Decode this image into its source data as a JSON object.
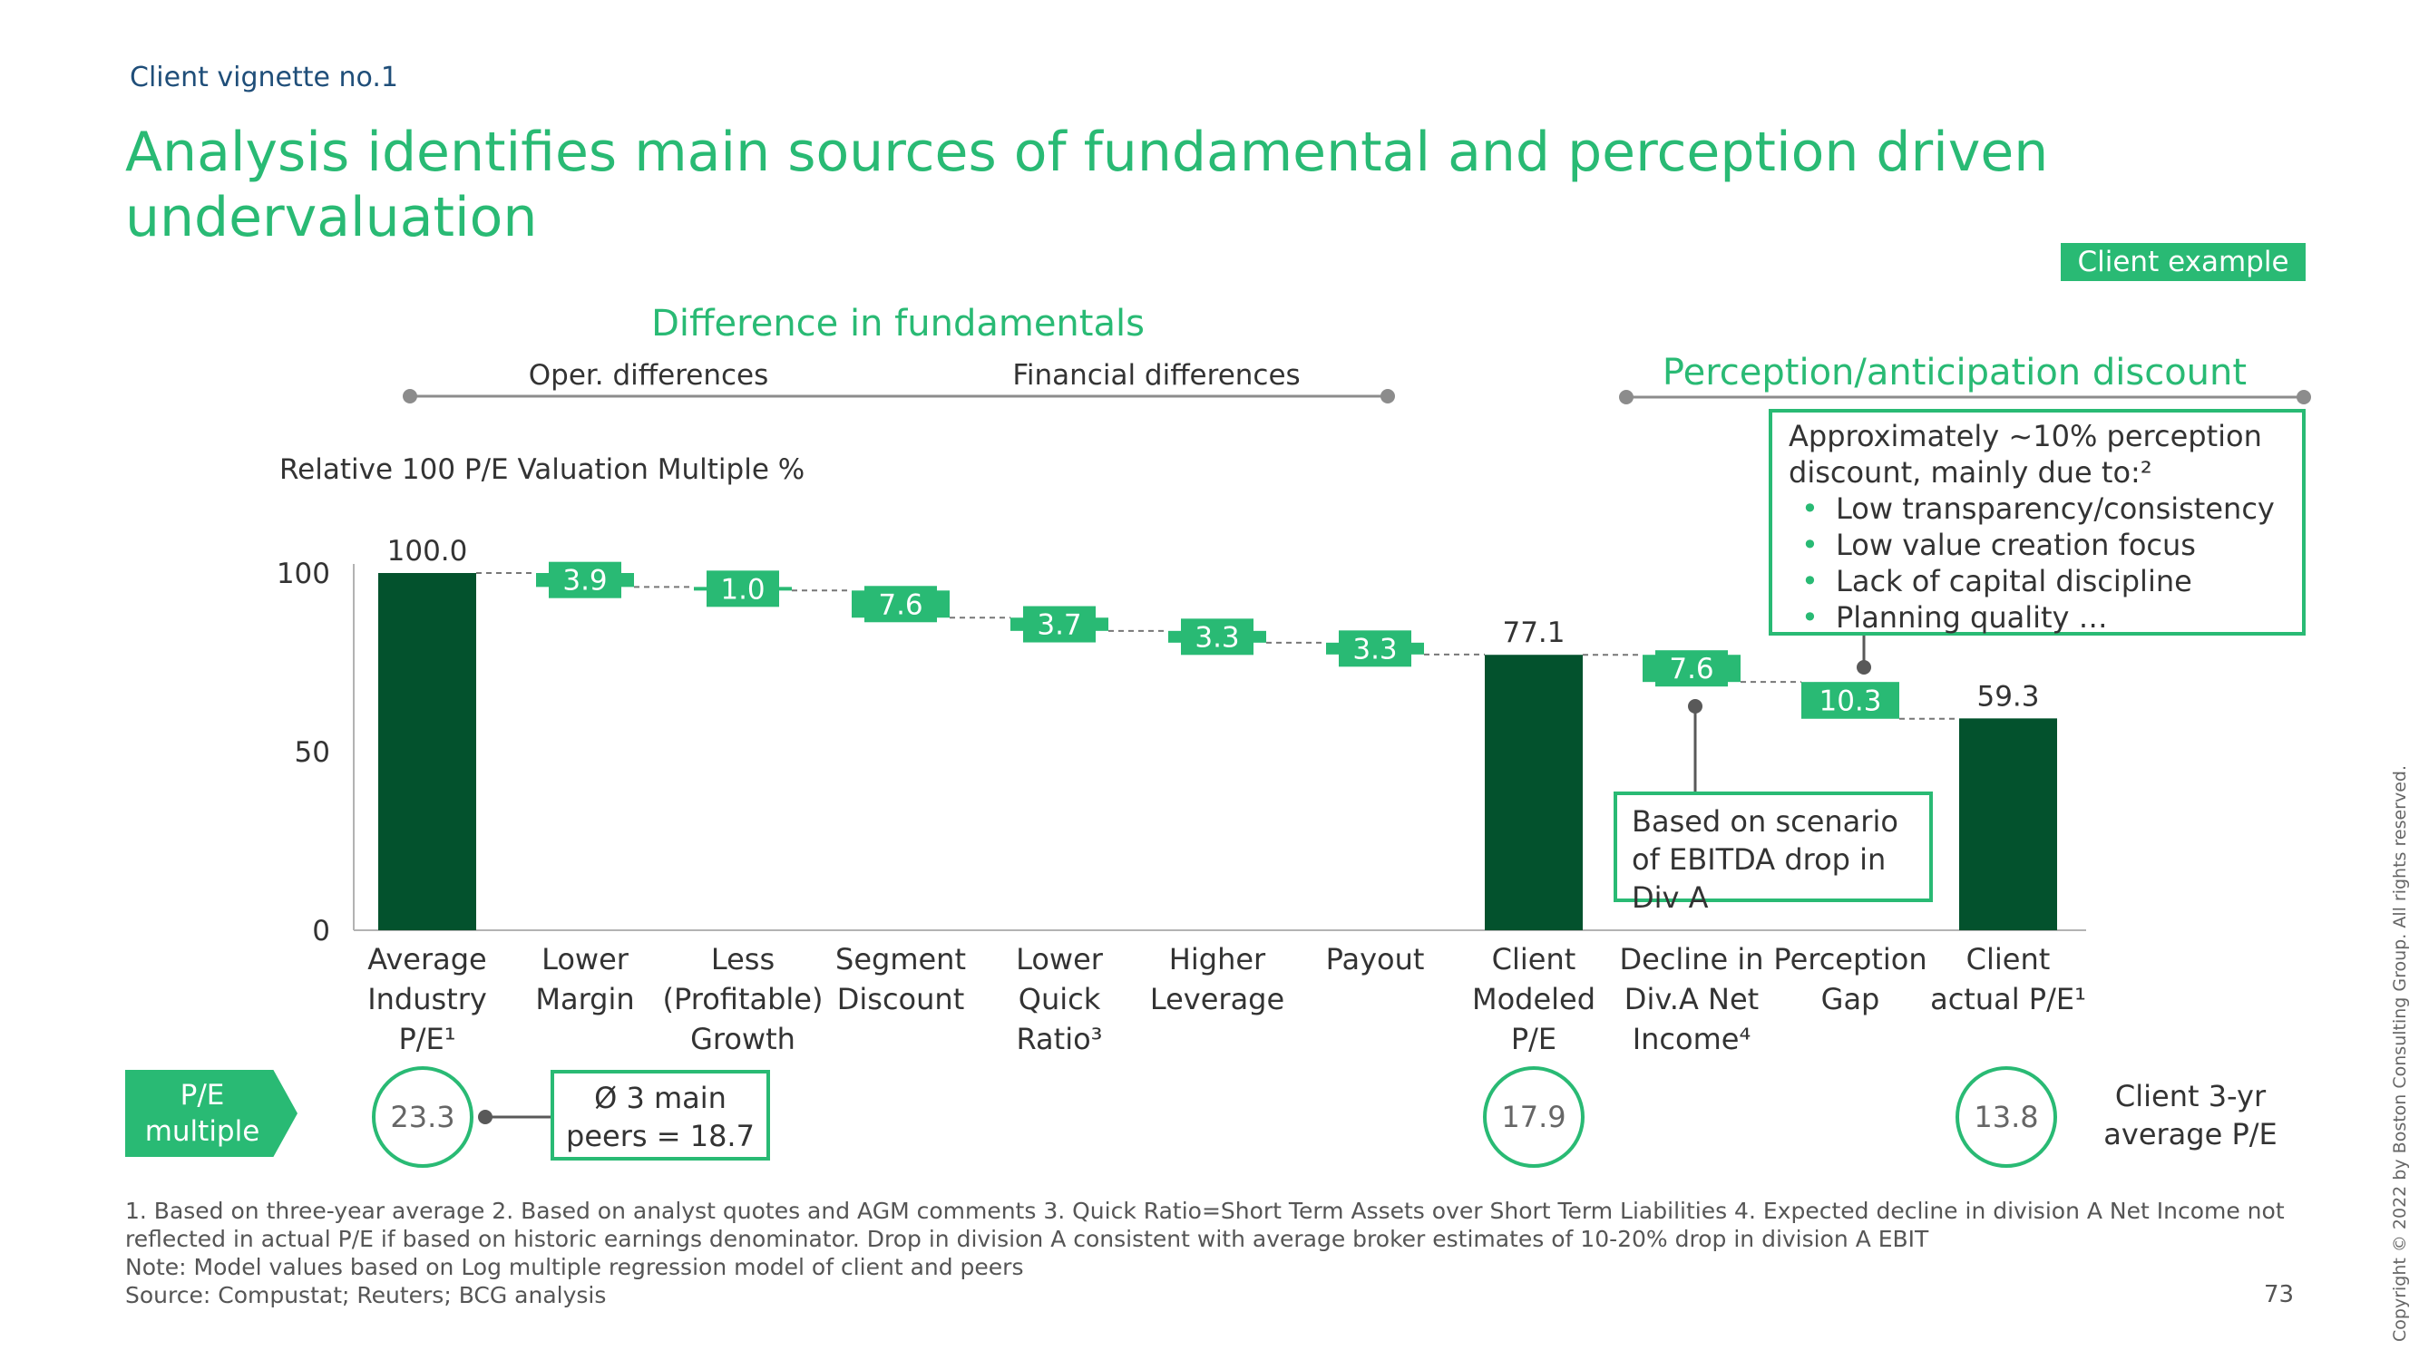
{
  "header": {
    "vignette": "Client vignette no.1",
    "title": "Analysis identifies main sources of fundamental and perception driven undervaluation",
    "badge": "Client example"
  },
  "section_labels": {
    "fundamentals": "Difference in fundamentals",
    "oper": "Oper. differences",
    "financial": "Financial differences",
    "perception": "Perception/anticipation discount"
  },
  "chart_data": {
    "type": "bar",
    "subtype": "waterfall",
    "ylabel": "Relative 100 P/E Valuation Multiple %",
    "ylim": [
      0,
      100
    ],
    "yticks": [
      0,
      50,
      100
    ],
    "categories": [
      "Average Industry P/E¹",
      "Lower Margin",
      "Less (Profitable) Growth",
      "Segment Discount",
      "Lower Quick Ratio³",
      "Higher Leverage",
      "Payout",
      "Client Modeled P/E",
      "Decline in Div.A Net Income⁴",
      "Perception Gap",
      "Client actual P/E¹"
    ],
    "values": [
      100.0,
      -3.9,
      -1.0,
      -7.6,
      -3.7,
      -3.3,
      -3.3,
      77.1,
      -7.6,
      -10.3,
      59.3
    ],
    "labels": [
      "100.0",
      "3.9",
      "1.0",
      "7.6",
      "3.7",
      "3.3",
      "3.3",
      "77.1",
      "7.6",
      "10.3",
      "59.3"
    ],
    "kinds": [
      "total",
      "delta",
      "delta",
      "delta",
      "delta",
      "delta",
      "delta",
      "total",
      "delta",
      "delta",
      "total"
    ],
    "colors": {
      "total": "#03522d",
      "delta": "#29ba74"
    }
  },
  "category_labels": [
    [
      "Average",
      "Industry",
      "P/E¹"
    ],
    [
      "Lower",
      "Margin"
    ],
    [
      "Less",
      "(Profitable)",
      "Growth"
    ],
    [
      "Segment",
      "Discount"
    ],
    [
      "Lower",
      "Quick",
      "Ratio³"
    ],
    [
      "Higher",
      "Leverage"
    ],
    [
      "Payout"
    ],
    [
      "Client",
      "Modeled",
      "P/E"
    ],
    [
      "Decline in",
      "Div.A Net",
      "Income⁴"
    ],
    [
      "Perception",
      "Gap"
    ],
    [
      "Client",
      "actual P/E¹"
    ]
  ],
  "pe_row": {
    "tag": "P/E multiple",
    "avg_industry": "23.3",
    "peers": "Ø 3 main peers = 18.7",
    "client_modeled": "17.9",
    "client_actual": "13.8",
    "client_3yr": "Client 3-yr average P/E"
  },
  "perception_box": {
    "intro": "Approximately ~10% perception discount, mainly due to:²",
    "items": [
      "Low transparency/consistency",
      "Low value creation focus",
      "Lack of capital discipline",
      "Planning quality …"
    ]
  },
  "scenario_box": "Based on scenario of EBITDA drop in Div A",
  "footnotes": {
    "line1": "1. Based on three-year average  2. Based on analyst quotes and AGM comments  3. Quick Ratio=Short Term Assets over Short Term Liabilities  4. Expected decline in division A Net Income not",
    "line2": "reflected in actual P/E if based on historic earnings denominator. Drop in division A consistent with average broker estimates of 10-20% drop in division A EBIT",
    "note": "Note: Model values based on Log multiple regression model of client and peers",
    "source": "Source: Compustat; Reuters; BCG analysis"
  },
  "page_number": "73",
  "copyright": "Copyright © 2022 by Boston Consulting Group. All rights reserved."
}
